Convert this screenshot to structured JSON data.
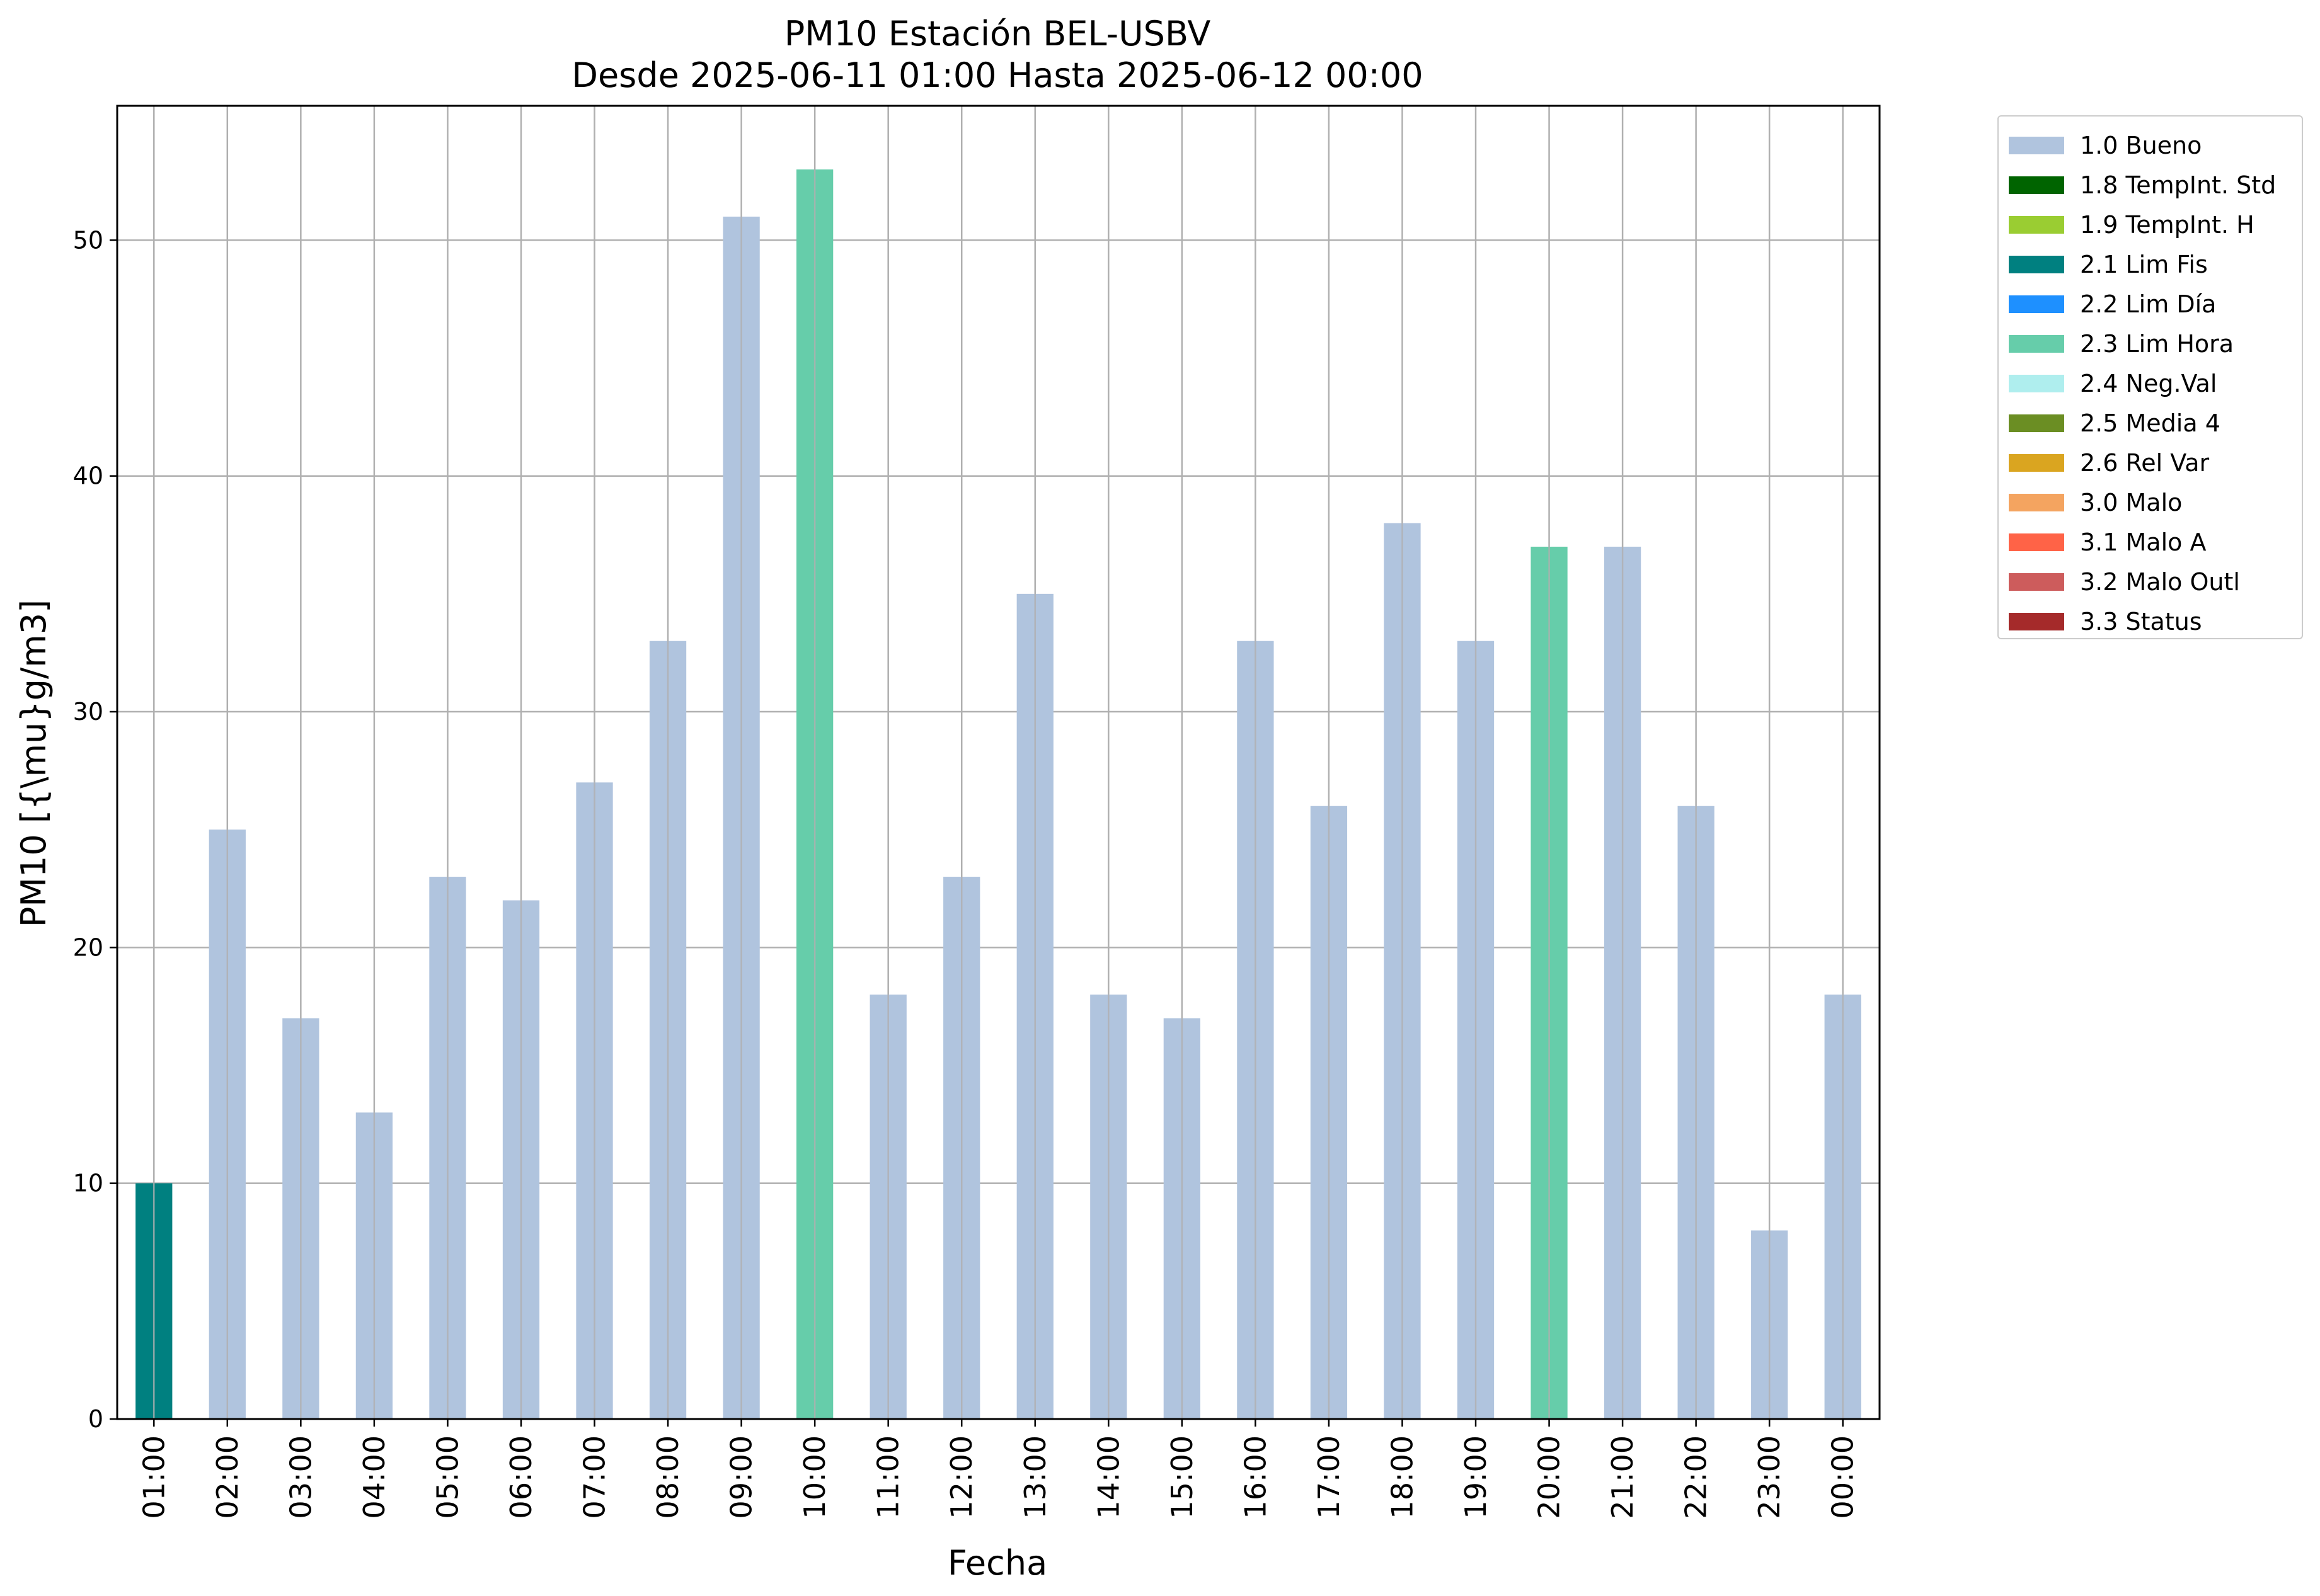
{
  "chart_data": {
    "type": "bar",
    "title": "PM10 Estación BEL-USBV",
    "subtitle": "Desde 2025-06-11 01:00 Hasta 2025-06-12 00:00",
    "xlabel": "Fecha",
    "ylabel": "PM10 [{\\mu}g/m3]",
    "ylim": [
      0,
      55.7
    ],
    "yticks": [
      0,
      10,
      20,
      30,
      40,
      50
    ],
    "grid": true,
    "legend_position": "outside-right",
    "categories": [
      "01:00",
      "02:00",
      "03:00",
      "04:00",
      "05:00",
      "06:00",
      "07:00",
      "08:00",
      "09:00",
      "10:00",
      "11:00",
      "12:00",
      "13:00",
      "14:00",
      "15:00",
      "16:00",
      "17:00",
      "18:00",
      "19:00",
      "20:00",
      "21:00",
      "22:00",
      "23:00",
      "00:00"
    ],
    "values": [
      10,
      25,
      17,
      13,
      23,
      22,
      27,
      33,
      51,
      53,
      18,
      23,
      35,
      18,
      17,
      33,
      26,
      38,
      33,
      37,
      37,
      26,
      8,
      18
    ],
    "flags": [
      "2.1 Lim Fis",
      "1.0 Bueno",
      "1.0 Bueno",
      "1.0 Bueno",
      "1.0 Bueno",
      "1.0 Bueno",
      "1.0 Bueno",
      "1.0 Bueno",
      "1.0 Bueno",
      "2.3 Lim Hora",
      "1.0 Bueno",
      "1.0 Bueno",
      "1.0 Bueno",
      "1.0 Bueno",
      "1.0 Bueno",
      "1.0 Bueno",
      "1.0 Bueno",
      "1.0 Bueno",
      "1.0 Bueno",
      "2.3 Lim Hora",
      "1.0 Bueno",
      "1.0 Bueno",
      "1.0 Bueno",
      "1.0 Bueno"
    ],
    "legend": [
      {
        "label": "1.0 Bueno",
        "color": "#b0c4de"
      },
      {
        "label": "1.8 TempInt. Std",
        "color": "#006400"
      },
      {
        "label": "1.9 TempInt. H",
        "color": "#9acd32"
      },
      {
        "label": "2.1 Lim Fis",
        "color": "#008080"
      },
      {
        "label": "2.2 Lim Día",
        "color": "#1e90ff"
      },
      {
        "label": "2.3 Lim Hora",
        "color": "#66cdaa"
      },
      {
        "label": "2.4 Neg.Val",
        "color": "#afeeee"
      },
      {
        "label": "2.5 Media 4",
        "color": "#6b8e23"
      },
      {
        "label": "2.6 Rel Var",
        "color": "#daa520"
      },
      {
        "label": "3.0 Malo",
        "color": "#f4a460"
      },
      {
        "label": "3.1 Malo A",
        "color": "#ff6347"
      },
      {
        "label": "3.2 Malo Outl",
        "color": "#cd5c5c"
      },
      {
        "label": "3.3 Status",
        "color": "#a52a2a"
      }
    ]
  }
}
